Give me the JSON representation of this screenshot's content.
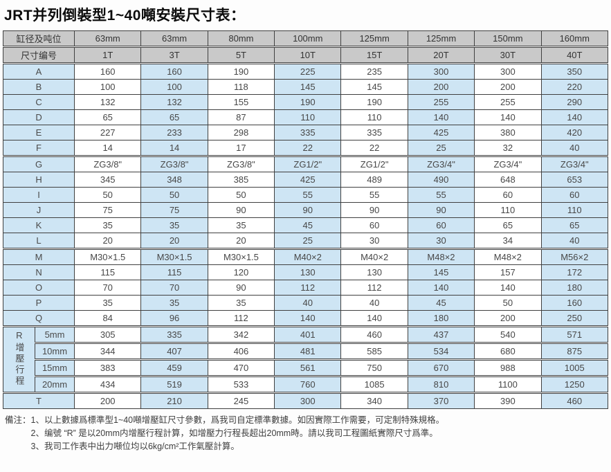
{
  "title": "JRT并列倒裝型1~40噸安裝尺寸表：",
  "table": {
    "header_row1": {
      "label": "缸径及吨位",
      "cols": [
        "63mm",
        "63mm",
        "80mm",
        "100mm",
        "125mm",
        "125mm",
        "150mm",
        "160mm"
      ]
    },
    "header_row2": {
      "label": "尺寸编号",
      "cols": [
        "1T",
        "3T",
        "5T",
        "10T",
        "15T",
        "20T",
        "30T",
        "40T"
      ]
    },
    "rows": [
      {
        "label": "A",
        "values": [
          "160",
          "160",
          "190",
          "225",
          "235",
          "300",
          "300",
          "350"
        ]
      },
      {
        "label": "B",
        "values": [
          "100",
          "100",
          "118",
          "145",
          "145",
          "200",
          "200",
          "220"
        ]
      },
      {
        "label": "C",
        "values": [
          "132",
          "132",
          "155",
          "190",
          "190",
          "255",
          "255",
          "290"
        ]
      },
      {
        "label": "D",
        "values": [
          "65",
          "65",
          "87",
          "110",
          "110",
          "140",
          "140",
          "140"
        ]
      },
      {
        "label": "E",
        "values": [
          "227",
          "233",
          "298",
          "335",
          "335",
          "425",
          "380",
          "420"
        ]
      },
      {
        "label": "F",
        "values": [
          "14",
          "14",
          "17",
          "22",
          "22",
          "25",
          "32",
          "40"
        ]
      },
      {
        "label": "G",
        "values": [
          "ZG3/8\"",
          "ZG3/8\"",
          "ZG3/8\"",
          "ZG1/2\"",
          "ZG1/2\"",
          "ZG3/4\"",
          "ZG3/4\"",
          "ZG3/4\""
        ]
      },
      {
        "label": "H",
        "values": [
          "345",
          "348",
          "385",
          "425",
          "489",
          "490",
          "648",
          "653"
        ]
      },
      {
        "label": "I",
        "values": [
          "50",
          "50",
          "50",
          "55",
          "55",
          "55",
          "60",
          "60"
        ]
      },
      {
        "label": "J",
        "values": [
          "75",
          "75",
          "90",
          "90",
          "90",
          "90",
          "110",
          "110"
        ]
      },
      {
        "label": "K",
        "values": [
          "35",
          "35",
          "35",
          "45",
          "60",
          "60",
          "65",
          "65"
        ]
      },
      {
        "label": "L",
        "values": [
          "20",
          "20",
          "20",
          "25",
          "30",
          "30",
          "34",
          "40"
        ]
      },
      {
        "label": "M",
        "values": [
          "M30×1.5",
          "M30×1.5",
          "M30×1.5",
          "M40×2",
          "M40×2",
          "M48×2",
          "M48×2",
          "M56×2"
        ]
      },
      {
        "label": "N",
        "values": [
          "115",
          "115",
          "120",
          "130",
          "130",
          "145",
          "157",
          "172"
        ]
      },
      {
        "label": "O",
        "values": [
          "70",
          "70",
          "90",
          "112",
          "112",
          "140",
          "140",
          "180"
        ]
      },
      {
        "label": "P",
        "values": [
          "35",
          "35",
          "35",
          "40",
          "40",
          "45",
          "50",
          "160"
        ]
      },
      {
        "label": "Q",
        "values": [
          "84",
          "96",
          "112",
          "140",
          "140",
          "180",
          "200",
          "250"
        ]
      }
    ],
    "section_breaks": [
      "A",
      "G",
      "M"
    ],
    "r_section": {
      "group_label": "R增壓行程",
      "rows": [
        {
          "label": "5mm",
          "values": [
            "305",
            "335",
            "342",
            "401",
            "460",
            "437",
            "540",
            "571"
          ]
        },
        {
          "label": "10mm",
          "values": [
            "344",
            "407",
            "406",
            "481",
            "585",
            "534",
            "680",
            "875"
          ]
        },
        {
          "label": "15mm",
          "values": [
            "383",
            "459",
            "470",
            "561",
            "750",
            "670",
            "988",
            "1005"
          ]
        },
        {
          "label": "20mm",
          "values": [
            "434",
            "519",
            "533",
            "760",
            "1085",
            "810",
            "1100",
            "1250"
          ]
        }
      ]
    },
    "t_row": {
      "label": "T",
      "values": [
        "200",
        "210",
        "245",
        "300",
        "340",
        "370",
        "390",
        "460"
      ]
    }
  },
  "notes": {
    "prefix": "備注：",
    "items": [
      "1、以上數據爲標準型1~40噸增壓缸尺寸參數，爲我司自定標準數據。如因實際工作需要，可定制特殊規格。",
      "2、编號 “R” 是以20mm内增壓行程計算，如增壓力行程長超出20mm時。請以我司工程圖紙實際尺寸爲準。",
      "3、我司工作表中出力噸位均以6kg/cm²工作氣壓計算。"
    ]
  },
  "colors": {
    "header_bg": "#c9c9c9",
    "row_blue": "#cee5f4",
    "border": "#3f3f3f",
    "text": "#474747"
  }
}
